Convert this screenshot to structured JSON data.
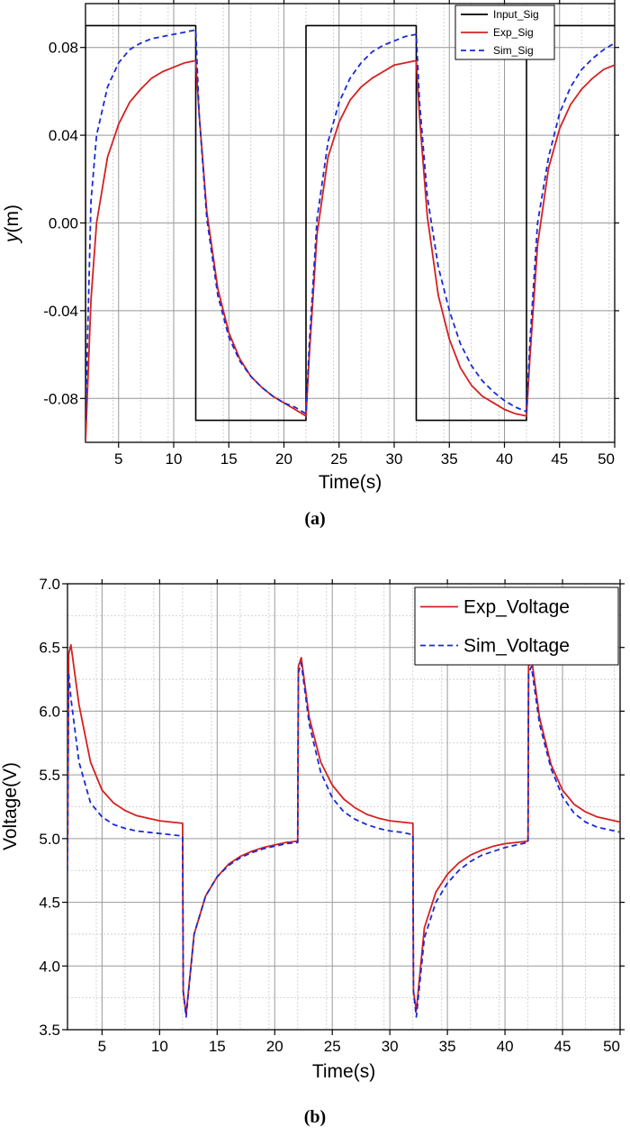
{
  "chart_data": [
    {
      "panel": "(a)",
      "type": "line",
      "xlabel": "Time(s)",
      "ylabel_italic": "y",
      "ylabel_rest": "(m)",
      "xlim": [
        2,
        50
      ],
      "ylim": [
        -0.1,
        0.1
      ],
      "xticks": [
        5,
        10,
        15,
        20,
        25,
        30,
        35,
        40,
        45,
        50
      ],
      "xtick_labels": [
        "5",
        "10",
        "15",
        "20",
        "25",
        "30",
        "35",
        "40",
        "45",
        "50"
      ],
      "yticks": [
        -0.08,
        -0.04,
        0.0,
        0.04,
        0.08
      ],
      "ytick_labels": [
        "-0.08",
        "-0.04",
        "0.00",
        "0.04",
        "0.08"
      ],
      "grid": true,
      "legend_position": "top-right",
      "series": [
        {
          "name": "Input_Sig",
          "color": "#000000",
          "style": "solid",
          "x": [
            2,
            2,
            12,
            12,
            22,
            22,
            32,
            32,
            42,
            42,
            50
          ],
          "y": [
            -0.09,
            0.09,
            0.09,
            -0.09,
            -0.09,
            0.09,
            0.09,
            -0.09,
            -0.09,
            0.09,
            0.09
          ]
        },
        {
          "name": "Exp_Sig",
          "color": "#d62020",
          "style": "solid",
          "x": [
            2,
            2.5,
            3,
            4,
            5,
            6,
            7,
            8,
            9,
            10,
            11,
            12,
            12.3,
            13,
            14,
            15,
            16,
            17,
            18,
            19,
            20,
            21,
            22,
            22.3,
            23,
            24,
            25,
            26,
            27,
            28,
            29,
            30,
            31,
            32,
            32.3,
            33,
            34,
            35,
            36,
            37,
            38,
            39,
            40,
            41,
            42,
            42.3,
            43,
            44,
            45,
            46,
            47,
            48,
            49,
            50
          ],
          "y": [
            -0.1,
            -0.035,
            0.0,
            0.03,
            0.045,
            0.055,
            0.061,
            0.066,
            0.069,
            0.071,
            0.073,
            0.074,
            0.05,
            0.005,
            -0.03,
            -0.05,
            -0.062,
            -0.07,
            -0.075,
            -0.079,
            -0.082,
            -0.085,
            -0.088,
            -0.06,
            -0.005,
            0.03,
            0.046,
            0.056,
            0.062,
            0.066,
            0.069,
            0.072,
            0.073,
            0.074,
            0.048,
            0.003,
            -0.033,
            -0.053,
            -0.066,
            -0.074,
            -0.079,
            -0.082,
            -0.085,
            -0.087,
            -0.088,
            -0.062,
            -0.01,
            0.025,
            0.043,
            0.054,
            0.061,
            0.066,
            0.07,
            0.072
          ]
        },
        {
          "name": "Sim_Sig",
          "color": "#1a2bd1",
          "style": "dashed",
          "x": [
            2,
            2.5,
            3,
            4,
            5,
            6,
            7,
            8,
            9,
            10,
            11,
            12,
            12.3,
            13,
            14,
            15,
            16,
            17,
            18,
            19,
            20,
            21,
            22,
            22.3,
            23,
            24,
            25,
            26,
            27,
            28,
            29,
            30,
            31,
            32,
            32.3,
            33,
            34,
            35,
            36,
            37,
            38,
            39,
            40,
            41,
            42,
            42.3,
            43,
            44,
            45,
            46,
            47,
            48,
            49,
            50
          ],
          "y": [
            -0.09,
            0.01,
            0.04,
            0.062,
            0.073,
            0.079,
            0.082,
            0.084,
            0.085,
            0.086,
            0.087,
            0.088,
            0.05,
            0.002,
            -0.033,
            -0.052,
            -0.063,
            -0.07,
            -0.075,
            -0.079,
            -0.082,
            -0.084,
            -0.087,
            -0.055,
            0.002,
            0.037,
            0.055,
            0.066,
            0.073,
            0.078,
            0.081,
            0.083,
            0.085,
            0.086,
            0.055,
            0.012,
            -0.02,
            -0.04,
            -0.055,
            -0.065,
            -0.072,
            -0.077,
            -0.081,
            -0.084,
            -0.086,
            -0.055,
            0.0,
            0.03,
            0.05,
            0.062,
            0.07,
            0.075,
            0.079,
            0.082
          ]
        }
      ]
    },
    {
      "panel": "(b)",
      "type": "line",
      "xlabel": "Time(s)",
      "ylabel": "Voltage(V)",
      "xlim": [
        2,
        50
      ],
      "ylim": [
        3.5,
        7.0
      ],
      "xticks": [
        5,
        10,
        15,
        20,
        25,
        30,
        35,
        40,
        45,
        50
      ],
      "xtick_labels": [
        "5",
        "10",
        "15",
        "20",
        "25",
        "30",
        "35",
        "40",
        "45",
        "50"
      ],
      "yticks": [
        3.5,
        4.0,
        4.5,
        5.0,
        5.5,
        6.0,
        6.5,
        7.0
      ],
      "ytick_labels": [
        "3.5",
        "4.0",
        "4.5",
        "5.0",
        "5.5",
        "6.0",
        "6.5",
        "7.0"
      ],
      "grid": true,
      "legend_position": "top-right",
      "series": [
        {
          "name": "Exp_Voltage",
          "color": "#d62020",
          "style": "solid",
          "x": [
            2,
            2.1,
            2.3,
            3,
            4,
            5,
            6,
            7,
            8,
            9,
            10,
            11,
            12,
            12.05,
            12.3,
            13,
            14,
            15,
            16,
            17,
            18,
            19,
            20,
            21,
            22,
            22.05,
            22.3,
            23,
            24,
            25,
            26,
            27,
            28,
            29,
            30,
            31,
            32,
            32.05,
            32.3,
            33,
            34,
            35,
            36,
            37,
            38,
            39,
            40,
            41,
            42,
            42.05,
            42.3,
            43,
            44,
            45,
            46,
            47,
            48,
            49,
            50
          ],
          "y": [
            4.8,
            6.45,
            6.52,
            6.05,
            5.6,
            5.38,
            5.28,
            5.22,
            5.18,
            5.16,
            5.14,
            5.13,
            5.12,
            3.8,
            3.62,
            4.25,
            4.55,
            4.7,
            4.8,
            4.86,
            4.9,
            4.93,
            4.95,
            4.97,
            4.98,
            6.35,
            6.42,
            5.95,
            5.6,
            5.42,
            5.31,
            5.24,
            5.19,
            5.16,
            5.14,
            5.13,
            5.12,
            3.8,
            3.65,
            4.3,
            4.58,
            4.72,
            4.81,
            4.87,
            4.91,
            4.94,
            4.96,
            4.97,
            4.98,
            6.35,
            6.42,
            5.95,
            5.58,
            5.38,
            5.27,
            5.21,
            5.17,
            5.15,
            5.13
          ]
        },
        {
          "name": "Sim_Voltage",
          "color": "#1a2bd1",
          "style": "dashed",
          "x": [
            2,
            2.1,
            2.3,
            3,
            4,
            5,
            6,
            7,
            8,
            9,
            10,
            11,
            12,
            12.05,
            12.3,
            13,
            14,
            15,
            16,
            17,
            18,
            19,
            20,
            21,
            22,
            22.05,
            22.3,
            23,
            24,
            25,
            26,
            27,
            28,
            29,
            30,
            31,
            32,
            32.05,
            32.3,
            33,
            34,
            35,
            36,
            37,
            38,
            39,
            40,
            41,
            42,
            42.05,
            42.3,
            43,
            44,
            45,
            46,
            47,
            48,
            49,
            50
          ],
          "y": [
            4.75,
            6.3,
            6.1,
            5.6,
            5.28,
            5.17,
            5.11,
            5.08,
            5.06,
            5.05,
            5.04,
            5.03,
            5.02,
            3.8,
            3.6,
            4.25,
            4.55,
            4.7,
            4.79,
            4.85,
            4.89,
            4.92,
            4.94,
            4.96,
            4.97,
            6.3,
            6.38,
            5.9,
            5.52,
            5.32,
            5.21,
            5.15,
            5.11,
            5.08,
            5.06,
            5.05,
            5.03,
            3.8,
            3.6,
            4.22,
            4.5,
            4.65,
            4.75,
            4.82,
            4.87,
            4.9,
            4.93,
            4.95,
            4.97,
            6.3,
            6.35,
            5.9,
            5.55,
            5.33,
            5.2,
            5.13,
            5.09,
            5.07,
            5.05
          ]
        }
      ]
    }
  ]
}
